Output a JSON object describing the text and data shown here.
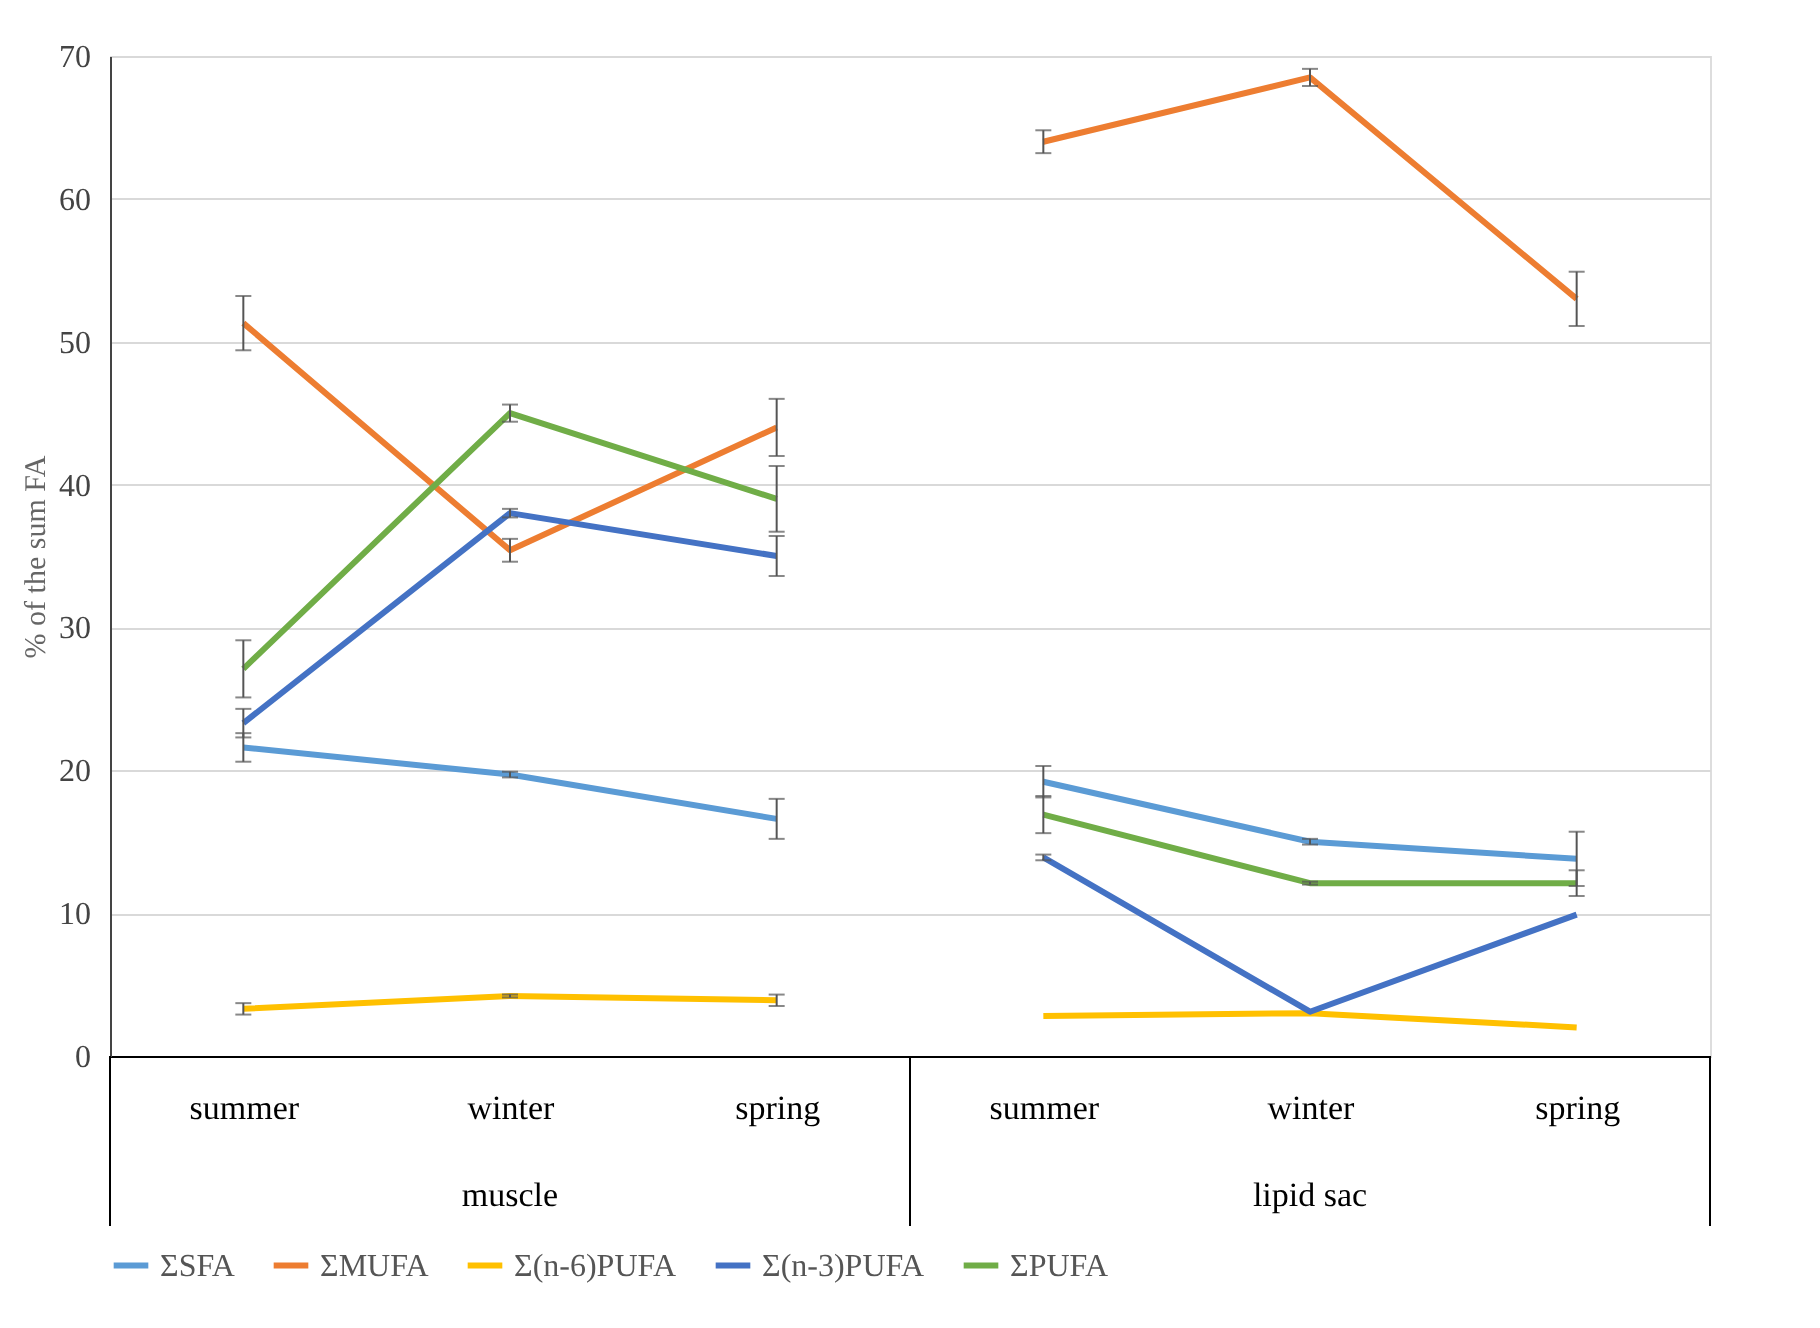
{
  "chart_data": {
    "type": "line",
    "ylabel": "% of the sum FA",
    "categories": [
      "summer",
      "winter",
      "spring",
      "summer",
      "winter",
      "spring"
    ],
    "annotations": [
      "muscle",
      "lipid sac"
    ],
    "series": [
      {
        "name": "ΣSFA",
        "color": "#5b9bd5",
        "values": [
          21.6,
          19.7,
          16.6,
          19.2,
          15.0,
          13.8
        ],
        "errors": [
          1.0,
          0.2,
          1.4,
          1.1,
          0.2,
          1.9
        ]
      },
      {
        "name": "ΣMUFA",
        "color": "#ed7d31",
        "values": [
          51.3,
          35.4,
          44.0,
          64.0,
          68.5,
          53.0
        ],
        "errors": [
          1.9,
          0.8,
          2.0,
          0.8,
          0.6,
          1.9
        ]
      },
      {
        "name": "Σ(n-6)PUFA",
        "color": "#ffc000",
        "values": [
          3.3,
          4.2,
          3.9,
          2.8,
          3.0,
          2.0
        ],
        "errors": [
          0.4,
          0.1,
          0.4,
          null,
          null,
          null
        ]
      },
      {
        "name": "Σ(n-3)PUFA",
        "color": "#4472c4",
        "values": [
          23.3,
          38.0,
          35.0,
          13.9,
          3.1,
          9.9
        ],
        "errors": [
          1.0,
          0.3,
          1.4,
          0.2,
          null,
          null
        ]
      },
      {
        "name": "ΣPUFA",
        "color": "#70ad47",
        "values": [
          27.1,
          45.0,
          39.0,
          16.9,
          12.1,
          12.1
        ],
        "errors": [
          2.0,
          0.6,
          2.3,
          1.3,
          0.1,
          0.9
        ]
      }
    ],
    "ylim": [
      0,
      70
    ],
    "yticks": [
      0,
      10,
      20,
      30,
      40,
      50,
      60,
      70
    ],
    "grid": "y",
    "legend": "bottom",
    "marker": "none",
    "line_style": "solid"
  }
}
